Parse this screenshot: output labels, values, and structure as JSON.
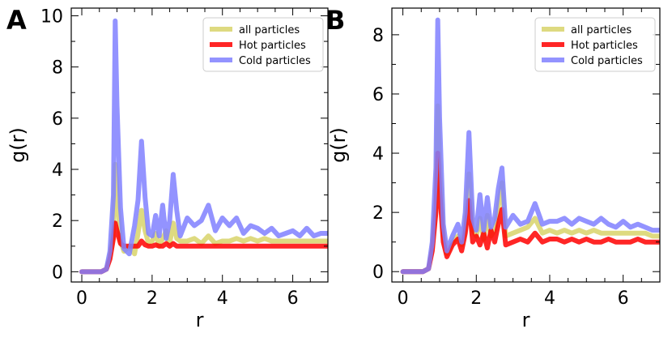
{
  "chart_data": [
    {
      "type": "line",
      "panel_label": "A",
      "xlabel": "r",
      "ylabel": "g(r)",
      "xlim": [
        -0.3,
        7.0
      ],
      "ylim": [
        -0.4,
        10.3
      ],
      "xticks": [
        0,
        2,
        4,
        6
      ],
      "yticks": [
        0,
        2,
        4,
        6,
        8,
        10
      ],
      "legend_position": "top-right",
      "series": [
        {
          "name": "all particles",
          "color": "#d8d46a",
          "x": [
            0,
            0.2,
            0.4,
            0.55,
            0.7,
            0.8,
            0.9,
            0.95,
            1.0,
            1.1,
            1.2,
            1.35,
            1.5,
            1.6,
            1.7,
            1.8,
            1.9,
            2.0,
            2.1,
            2.2,
            2.3,
            2.4,
            2.5,
            2.6,
            2.7,
            2.8,
            3.0,
            3.2,
            3.4,
            3.6,
            3.8,
            4.0,
            4.2,
            4.4,
            4.6,
            4.8,
            5.0,
            5.2,
            5.4,
            5.6,
            5.8,
            6.0,
            6.2,
            6.4,
            6.6,
            6.8,
            7.0
          ],
          "y": [
            0,
            0,
            0,
            0,
            0.1,
            0.6,
            1.6,
            4.2,
            3.1,
            1.2,
            0.8,
            1.0,
            0.7,
            1.5,
            2.4,
            1.6,
            1.1,
            1.2,
            1.5,
            1.0,
            1.3,
            1.6,
            1.1,
            1.9,
            1.3,
            1.2,
            1.2,
            1.3,
            1.1,
            1.4,
            1.1,
            1.2,
            1.2,
            1.3,
            1.2,
            1.3,
            1.2,
            1.3,
            1.2,
            1.2,
            1.2,
            1.2,
            1.2,
            1.2,
            1.2,
            1.2,
            1.2
          ]
        },
        {
          "name": "Hot particles",
          "color": "#ff0000",
          "x": [
            0,
            0.2,
            0.4,
            0.55,
            0.7,
            0.8,
            0.9,
            0.95,
            1.0,
            1.1,
            1.2,
            1.35,
            1.5,
            1.6,
            1.7,
            1.8,
            1.9,
            2.0,
            2.1,
            2.2,
            2.3,
            2.4,
            2.5,
            2.6,
            2.7,
            2.8,
            3.0,
            3.2,
            3.4,
            3.6,
            3.8,
            4.0,
            4.2,
            4.4,
            4.6,
            4.8,
            5.0,
            5.2,
            5.4,
            5.6,
            5.8,
            6.0,
            6.2,
            6.4,
            6.6,
            6.8,
            7.0
          ],
          "y": [
            0,
            0,
            0,
            0,
            0.1,
            0.5,
            1.3,
            1.9,
            1.6,
            1.1,
            1.0,
            1.0,
            1.0,
            1.0,
            1.2,
            1.05,
            1.0,
            1.0,
            1.05,
            1.0,
            1.0,
            1.1,
            1.0,
            1.1,
            1.0,
            1.0,
            1.0,
            1.0,
            1.0,
            1.0,
            1.0,
            1.0,
            1.0,
            1.0,
            1.0,
            1.0,
            1.0,
            1.0,
            1.0,
            1.0,
            1.0,
            1.0,
            1.0,
            1.0,
            1.0,
            1.0,
            1.0
          ]
        },
        {
          "name": "Cold particles",
          "color": "#8080ff",
          "x": [
            0,
            0.2,
            0.4,
            0.55,
            0.7,
            0.8,
            0.9,
            0.95,
            1.0,
            1.1,
            1.2,
            1.35,
            1.5,
            1.6,
            1.7,
            1.8,
            1.9,
            2.0,
            2.1,
            2.2,
            2.3,
            2.4,
            2.5,
            2.6,
            2.7,
            2.8,
            3.0,
            3.2,
            3.4,
            3.6,
            3.8,
            4.0,
            4.2,
            4.4,
            4.6,
            4.8,
            5.0,
            5.2,
            5.4,
            5.6,
            5.8,
            6.0,
            6.2,
            6.4,
            6.6,
            6.8,
            7.0
          ],
          "y": [
            0,
            0,
            0,
            0,
            0.1,
            0.8,
            3.0,
            9.8,
            6.5,
            2.5,
            0.9,
            0.7,
            1.8,
            2.8,
            5.1,
            2.9,
            1.5,
            1.4,
            2.2,
            1.4,
            2.6,
            1.3,
            2.0,
            3.8,
            2.4,
            1.4,
            2.1,
            1.8,
            2.0,
            2.6,
            1.6,
            2.1,
            1.8,
            2.1,
            1.5,
            1.8,
            1.7,
            1.5,
            1.7,
            1.4,
            1.5,
            1.6,
            1.4,
            1.7,
            1.4,
            1.5,
            1.5
          ]
        }
      ]
    },
    {
      "type": "line",
      "panel_label": "B",
      "xlabel": "r",
      "ylabel": "g(r)",
      "xlim": [
        -0.3,
        7.0
      ],
      "ylim": [
        -0.35,
        8.9
      ],
      "xticks": [
        0,
        2,
        4,
        6
      ],
      "yticks": [
        0,
        2,
        4,
        6,
        8
      ],
      "legend_position": "top-right",
      "series": [
        {
          "name": "all particles",
          "color": "#d8d46a",
          "x": [
            0,
            0.2,
            0.4,
            0.55,
            0.7,
            0.8,
            0.9,
            0.95,
            1.0,
            1.1,
            1.2,
            1.35,
            1.5,
            1.6,
            1.7,
            1.8,
            1.9,
            2.0,
            2.1,
            2.2,
            2.3,
            2.4,
            2.5,
            2.6,
            2.7,
            2.8,
            3.0,
            3.2,
            3.4,
            3.6,
            3.8,
            4.0,
            4.2,
            4.4,
            4.6,
            4.8,
            5.0,
            5.2,
            5.4,
            5.6,
            5.8,
            6.0,
            6.2,
            6.4,
            6.6,
            6.8,
            7.0
          ],
          "y": [
            0,
            0,
            0,
            0,
            0.1,
            0.8,
            2.5,
            5.6,
            3.6,
            1.3,
            0.6,
            1.0,
            1.2,
            0.9,
            1.6,
            3.3,
            1.4,
            1.2,
            1.8,
            1.1,
            1.9,
            1.2,
            1.4,
            2.2,
            3.0,
            1.2,
            1.3,
            1.4,
            1.5,
            1.8,
            1.3,
            1.4,
            1.3,
            1.4,
            1.3,
            1.4,
            1.3,
            1.4,
            1.3,
            1.3,
            1.3,
            1.3,
            1.3,
            1.3,
            1.3,
            1.2,
            1.2
          ]
        },
        {
          "name": "Hot particles",
          "color": "#ff0000",
          "x": [
            0,
            0.2,
            0.4,
            0.55,
            0.7,
            0.8,
            0.9,
            0.95,
            1.0,
            1.1,
            1.2,
            1.35,
            1.5,
            1.6,
            1.7,
            1.8,
            1.9,
            2.0,
            2.1,
            2.2,
            2.3,
            2.4,
            2.5,
            2.6,
            2.7,
            2.8,
            3.0,
            3.2,
            3.4,
            3.6,
            3.8,
            4.0,
            4.2,
            4.4,
            4.6,
            4.8,
            5.0,
            5.2,
            5.4,
            5.6,
            5.8,
            6.0,
            6.2,
            6.4,
            6.6,
            6.8,
            7.0
          ],
          "y": [
            0,
            0,
            0,
            0,
            0.1,
            0.7,
            2.0,
            4.0,
            2.8,
            1.0,
            0.5,
            0.9,
            1.1,
            0.7,
            1.3,
            2.4,
            1.0,
            1.2,
            0.9,
            1.3,
            0.8,
            1.4,
            1.0,
            1.6,
            2.1,
            0.9,
            1.0,
            1.1,
            1.0,
            1.3,
            1.0,
            1.1,
            1.1,
            1.0,
            1.1,
            1.0,
            1.1,
            1.0,
            1.0,
            1.1,
            1.0,
            1.0,
            1.0,
            1.1,
            1.0,
            1.0,
            1.0
          ]
        },
        {
          "name": "Cold particles",
          "color": "#8080ff",
          "x": [
            0,
            0.2,
            0.4,
            0.55,
            0.7,
            0.8,
            0.9,
            0.95,
            1.0,
            1.1,
            1.2,
            1.35,
            1.5,
            1.6,
            1.7,
            1.8,
            1.9,
            2.0,
            2.1,
            2.2,
            2.3,
            2.4,
            2.5,
            2.6,
            2.7,
            2.8,
            3.0,
            3.2,
            3.4,
            3.6,
            3.8,
            4.0,
            4.2,
            4.4,
            4.6,
            4.8,
            5.0,
            5.2,
            5.4,
            5.6,
            5.8,
            6.0,
            6.2,
            6.4,
            6.6,
            6.8,
            7.0
          ],
          "y": [
            0,
            0,
            0,
            0,
            0.1,
            1.0,
            3.5,
            8.5,
            5.2,
            1.6,
            0.7,
            1.2,
            1.6,
            1.0,
            2.0,
            4.7,
            1.8,
            1.4,
            2.6,
            1.4,
            2.5,
            1.5,
            1.8,
            2.8,
            3.5,
            1.5,
            1.9,
            1.6,
            1.7,
            2.3,
            1.6,
            1.7,
            1.7,
            1.8,
            1.6,
            1.8,
            1.7,
            1.6,
            1.8,
            1.6,
            1.5,
            1.7,
            1.5,
            1.6,
            1.5,
            1.4,
            1.4
          ]
        }
      ]
    }
  ]
}
